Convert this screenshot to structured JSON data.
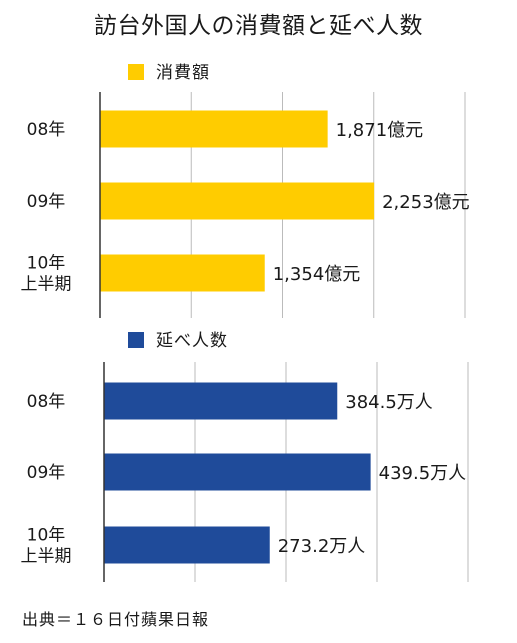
{
  "title": "訪台外国人の消費額と延べ人数",
  "source": "出典＝１６日付蘋果日報",
  "colors": {
    "spending": "#FFCC00",
    "visitors": "#1F4B9A",
    "axis": "#333333",
    "grid": "#BBBBBB"
  },
  "chart_data": [
    {
      "type": "bar",
      "orientation": "horizontal",
      "categories": [
        "08年",
        "09年",
        "10年\n上半期"
      ],
      "series": [
        {
          "name": "消費額",
          "values": [
            1871,
            2253,
            1354
          ],
          "data_labels": [
            "1,871億元",
            "2,253億元",
            "1,354億元"
          ]
        }
      ],
      "xlim": [
        0,
        3000
      ],
      "grid": true,
      "legend": "top-left"
    },
    {
      "type": "bar",
      "orientation": "horizontal",
      "categories": [
        "08年",
        "09年",
        "10年\n上半期"
      ],
      "series": [
        {
          "name": "延べ人数",
          "values": [
            384.5,
            439.5,
            273.2
          ],
          "data_labels": [
            "384.5万人",
            "439.5万人",
            "273.2万人"
          ]
        }
      ],
      "xlim": [
        0,
        600
      ],
      "grid": true,
      "legend": "top-left"
    }
  ]
}
